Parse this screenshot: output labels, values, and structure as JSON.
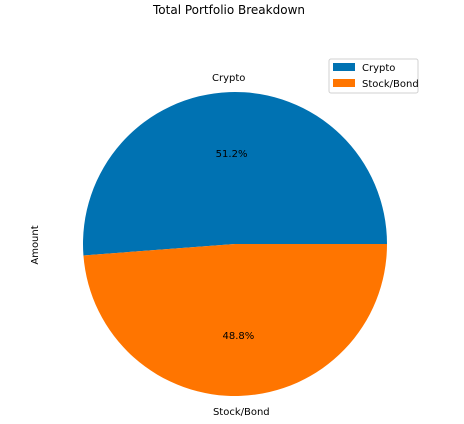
{
  "chart_data": {
    "type": "pie",
    "title": "Total Portfolio Breakdown",
    "ylabel": "Amount",
    "slices": [
      {
        "label": "Crypto",
        "percent": 51.2,
        "percent_label": "51.2%",
        "color": "#0072B2"
      },
      {
        "label": "Stock/Bond",
        "percent": 48.8,
        "percent_label": "48.8%",
        "color": "#FF7500"
      }
    ],
    "legend": {
      "placement": "top-right",
      "entries": [
        "Crypto",
        "Stock/Bond"
      ]
    }
  }
}
